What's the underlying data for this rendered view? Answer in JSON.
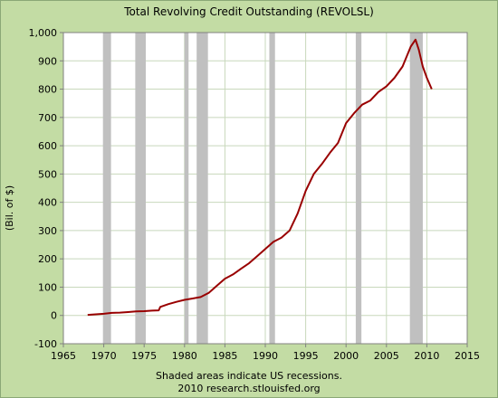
{
  "chart_data": {
    "type": "line",
    "title": "Total Revolving Credit Outstanding (REVOLSL)",
    "xlabel": "",
    "ylabel": "(Bil. of $)",
    "xlim": [
      1965,
      2015
    ],
    "ylim": [
      -100,
      1000
    ],
    "xticks": [
      "1965",
      "1970",
      "1975",
      "1980",
      "1985",
      "1990",
      "1995",
      "2000",
      "2005",
      "2010",
      "2015"
    ],
    "yticks": [
      "-100",
      "0",
      "100",
      "200",
      "300",
      "400",
      "500",
      "600",
      "700",
      "800",
      "900",
      "1,000"
    ],
    "grid": true,
    "footnote": "Shaded areas indicate US recessions.",
    "source": "2010 research.stlouisfed.org",
    "colors": {
      "line": "#990000",
      "recession": "#c0c0c0",
      "plot_bg": "#ffffff",
      "grid": "#c8d8bc",
      "chart_bg": "#c3dca4"
    },
    "recessions": [
      [
        1969.9,
        1970.9
      ],
      [
        1973.9,
        1975.2
      ],
      [
        1980.0,
        1980.5
      ],
      [
        1981.5,
        1982.9
      ],
      [
        1990.5,
        1991.2
      ],
      [
        2001.2,
        2001.9
      ],
      [
        2007.9,
        2009.5
      ]
    ],
    "series": [
      {
        "x": [
          1968.0,
          1969.0,
          1970.0,
          1971.0,
          1972.0,
          1973.0,
          1974.0,
          1975.0,
          1976.0,
          1976.8,
          1977.0,
          1978.0,
          1979.0,
          1980.0,
          1981.0,
          1982.0,
          1983.0,
          1984.0,
          1985.0,
          1986.0,
          1987.0,
          1988.0,
          1989.0,
          1990.0,
          1991.0,
          1992.0,
          1993.0,
          1994.0,
          1995.0,
          1996.0,
          1997.0,
          1998.0,
          1999.0,
          2000.0,
          2001.0,
          2002.0,
          2003.0,
          2004.0,
          2005.0,
          2006.0,
          2007.0,
          2008.0,
          2008.6,
          2009.0,
          2009.5,
          2010.0,
          2010.6
        ],
        "y": [
          2,
          4,
          6,
          9,
          10,
          12,
          14,
          15,
          17,
          18,
          30,
          40,
          48,
          55,
          60,
          65,
          80,
          105,
          130,
          145,
          165,
          185,
          210,
          235,
          260,
          275,
          300,
          360,
          440,
          500,
          535,
          575,
          610,
          680,
          715,
          745,
          760,
          790,
          810,
          840,
          880,
          950,
          975,
          940,
          880,
          840,
          800
        ]
      }
    ]
  }
}
